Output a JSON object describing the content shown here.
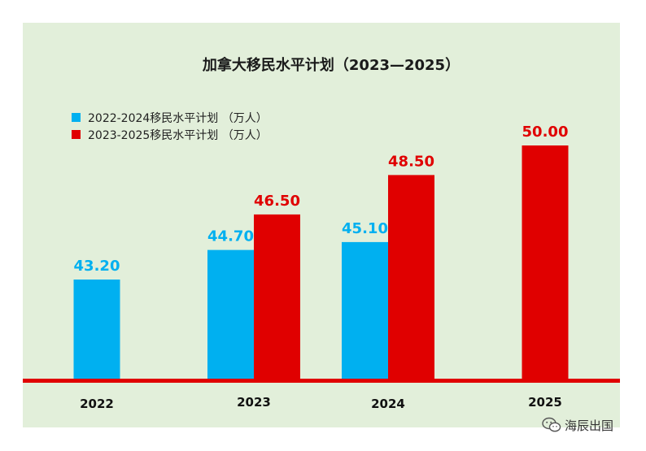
{
  "colors": {
    "background": "#e2efda",
    "series_blue": "#00b0f0",
    "series_red": "#e00000",
    "baseline": "#e00000"
  },
  "chart_data": {
    "type": "bar",
    "title": "加拿大移民水平计划（2023—2025）",
    "categories": [
      "2022",
      "2023",
      "2024",
      "2025"
    ],
    "series": [
      {
        "name": "2022-2024移民水平计划 （万人）",
        "values": [
          43.2,
          44.7,
          45.1,
          null
        ],
        "labels": [
          "43.20",
          "44.70",
          "45.10",
          null
        ]
      },
      {
        "name": "2023-2025移民水平计划 （万人）",
        "values": [
          null,
          46.5,
          48.5,
          50.0
        ],
        "labels": [
          null,
          "46.50",
          "48.50",
          "50.00"
        ]
      }
    ],
    "legend_position": "top-left",
    "grid": false
  },
  "watermark": {
    "text": "海辰出国",
    "icon": "wechat-icon"
  }
}
